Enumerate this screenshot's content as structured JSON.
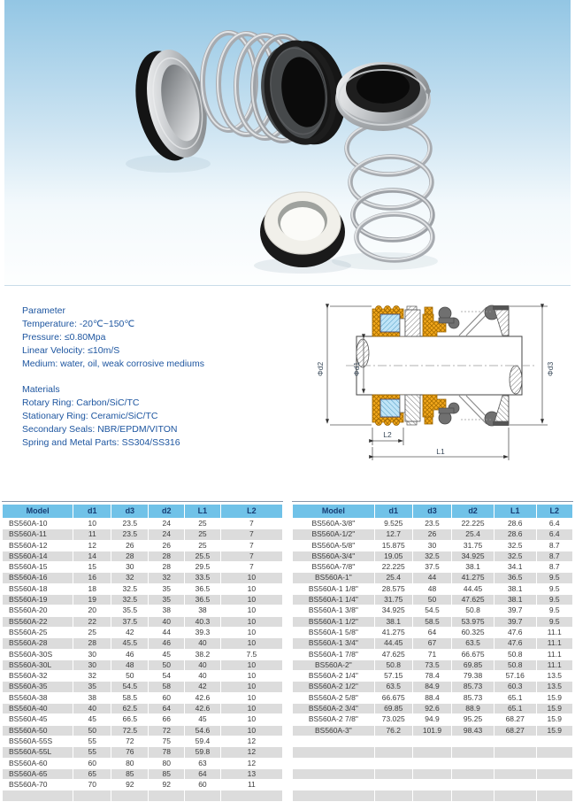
{
  "parameters": {
    "title": "Parameter",
    "lines": [
      "Temperature: -20℃~150℃",
      "Pressure: ≤0.80Mpa",
      "Linear Velocity: ≤10m/S",
      "Medium: water, oil, weak corrosive mediums"
    ]
  },
  "materials": {
    "title": "Materials",
    "lines": [
      "Rotary Ring: Carbon/SiC/TC",
      "Stationary Ring: Ceramic/SiC/TC",
      "Secondary Seals: NBR/EPDM/VITON",
      "Spring and Metal Parts: SS304/SS316"
    ]
  },
  "diagram": {
    "labels": {
      "d1": "Φd1",
      "d2": "Φd2",
      "d3": "Φd3",
      "l1": "L1",
      "l2": "L2"
    }
  },
  "tables": {
    "headers": [
      "Model",
      "d1",
      "d3",
      "d2",
      "L1",
      "L2"
    ],
    "left_rows": [
      [
        "BS560A-10",
        "10",
        "23.5",
        "24",
        "25",
        "7"
      ],
      [
        "BS560A-11",
        "11",
        "23.5",
        "24",
        "25",
        "7"
      ],
      [
        "BS560A-12",
        "12",
        "26",
        "26",
        "25",
        "7"
      ],
      [
        "BS560A-14",
        "14",
        "28",
        "28",
        "25.5",
        "7"
      ],
      [
        "BS560A-15",
        "15",
        "30",
        "28",
        "29.5",
        "7"
      ],
      [
        "BS560A-16",
        "16",
        "32",
        "32",
        "33.5",
        "10"
      ],
      [
        "BS560A-18",
        "18",
        "32.5",
        "35",
        "36.5",
        "10"
      ],
      [
        "BS560A-19",
        "19",
        "32.5",
        "35",
        "36.5",
        "10"
      ],
      [
        "BS560A-20",
        "20",
        "35.5",
        "38",
        "38",
        "10"
      ],
      [
        "BS560A-22",
        "22",
        "37.5",
        "40",
        "40.3",
        "10"
      ],
      [
        "BS560A-25",
        "25",
        "42",
        "44",
        "39.3",
        "10"
      ],
      [
        "BS560A-28",
        "28",
        "45.5",
        "46",
        "40",
        "10"
      ],
      [
        "BS560A-30S",
        "30",
        "46",
        "45",
        "38.2",
        "7.5"
      ],
      [
        "BS560A-30L",
        "30",
        "48",
        "50",
        "40",
        "10"
      ],
      [
        "BS560A-32",
        "32",
        "50",
        "54",
        "40",
        "10"
      ],
      [
        "BS560A-35",
        "35",
        "54.5",
        "58",
        "42",
        "10"
      ],
      [
        "BS560A-38",
        "38",
        "58.5",
        "60",
        "42.6",
        "10"
      ],
      [
        "BS560A-40",
        "40",
        "62.5",
        "64",
        "42.6",
        "10"
      ],
      [
        "BS560A-45",
        "45",
        "66.5",
        "66",
        "45",
        "10"
      ],
      [
        "BS560A-50",
        "50",
        "72.5",
        "72",
        "54.6",
        "10"
      ],
      [
        "BS560A-55S",
        "55",
        "72",
        "75",
        "59.4",
        "12"
      ],
      [
        "BS560A-55L",
        "55",
        "76",
        "78",
        "59.8",
        "12"
      ],
      [
        "BS560A-60",
        "60",
        "80",
        "80",
        "63",
        "12"
      ],
      [
        "BS560A-65",
        "65",
        "85",
        "85",
        "64",
        "13"
      ],
      [
        "BS560A-70",
        "70",
        "92",
        "92",
        "60",
        "11"
      ],
      [
        "",
        "",
        "",
        "",
        "",
        ""
      ]
    ],
    "right_rows": [
      [
        "BS560A-3/8\"",
        "9.525",
        "23.5",
        "22.225",
        "28.6",
        "6.4"
      ],
      [
        "BS560A-1/2\"",
        "12.7",
        "26",
        "25.4",
        "28.6",
        "6.4"
      ],
      [
        "BS560A-5/8\"",
        "15.875",
        "30",
        "31.75",
        "32.5",
        "8.7"
      ],
      [
        "BS560A-3/4\"",
        "19.05",
        "32.5",
        "34.925",
        "32.5",
        "8.7"
      ],
      [
        "BS560A-7/8\"",
        "22.225",
        "37.5",
        "38.1",
        "34.1",
        "8.7"
      ],
      [
        "BS560A-1\"",
        "25.4",
        "44",
        "41.275",
        "36.5",
        "9.5"
      ],
      [
        "BS560A-1 1/8\"",
        "28.575",
        "48",
        "44.45",
        "38.1",
        "9.5"
      ],
      [
        "BS560A-1 1/4\"",
        "31.75",
        "50",
        "47.625",
        "38.1",
        "9.5"
      ],
      [
        "BS560A-1 3/8\"",
        "34.925",
        "54.5",
        "50.8",
        "39.7",
        "9.5"
      ],
      [
        "BS560A-1 1/2\"",
        "38.1",
        "58.5",
        "53.975",
        "39.7",
        "9.5"
      ],
      [
        "BS560A-1 5/8\"",
        "41.275",
        "64",
        "60.325",
        "47.6",
        "11.1"
      ],
      [
        "BS560A-1 3/4\"",
        "44.45",
        "67",
        "63.5",
        "47.6",
        "11.1"
      ],
      [
        "BS560A-1 7/8\"",
        "47.625",
        "71",
        "66.675",
        "50.8",
        "11.1"
      ],
      [
        "BS560A-2\"",
        "50.8",
        "73.5",
        "69.85",
        "50.8",
        "11.1"
      ],
      [
        "BS560A-2 1/4\"",
        "57.15",
        "78.4",
        "79.38",
        "57.16",
        "13.5"
      ],
      [
        "BS560A-2 1/2\"",
        "63.5",
        "84.9",
        "85.73",
        "60.3",
        "13.5"
      ],
      [
        "BS560A-2 5/8\"",
        "66.675",
        "88.4",
        "85.73",
        "65.1",
        "15.9"
      ],
      [
        "BS560A-2 3/4\"",
        "69.85",
        "92.6",
        "88.9",
        "65.1",
        "15.9"
      ],
      [
        "BS560A-2 7/8\"",
        "73.025",
        "94.9",
        "95.25",
        "68.27",
        "15.9"
      ],
      [
        "BS560A-3\"",
        "76.2",
        "101.9",
        "98.43",
        "68.27",
        "15.9"
      ],
      [
        "",
        "",
        "",
        "",
        "",
        ""
      ],
      [
        "",
        "",
        "",
        "",
        "",
        ""
      ],
      [
        "",
        "",
        "",
        "",
        "",
        ""
      ],
      [
        "",
        "",
        "",
        "",
        "",
        ""
      ],
      [
        "",
        "",
        "",
        "",
        "",
        ""
      ],
      [
        "",
        "",
        "",
        "",
        "",
        ""
      ]
    ]
  },
  "colors": {
    "header_bg": "#70c2e8",
    "header_text": "#173d73",
    "row_stripe": "#dcdcdc",
    "rule_line": "#8795a8",
    "param_text": "#1e56a0",
    "body_text": "#3a3a3a",
    "photo_bottom_line": "#c9dce9",
    "diagram_rubber_orange": "#f3a81c",
    "diagram_seal_blue": "#bfe4f7"
  }
}
